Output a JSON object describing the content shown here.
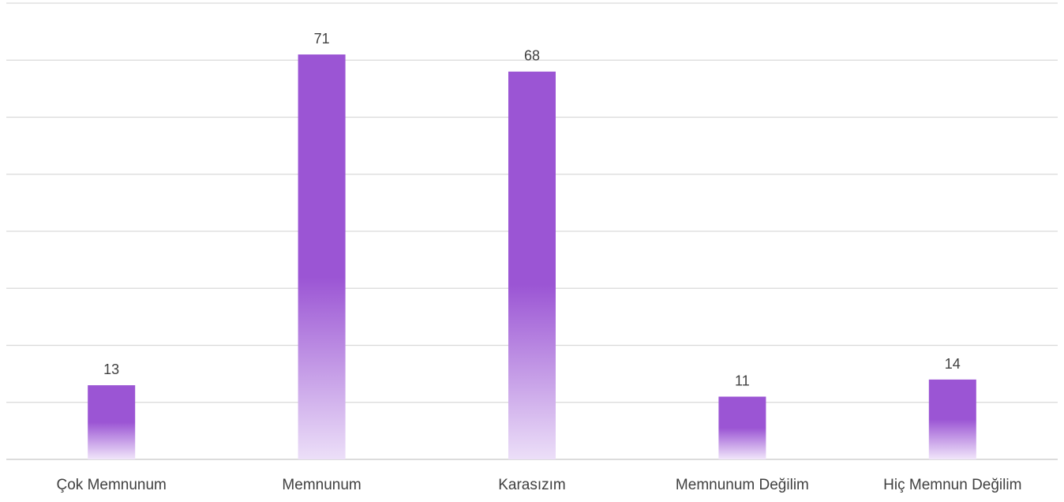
{
  "chart_data": {
    "type": "bar",
    "title": "",
    "xlabel": "",
    "ylabel": "",
    "categories": [
      "Çok Memnunum",
      "Memnunum",
      "Karasızım",
      "Memnunum Değilim",
      "Hiç Memnun Değilim"
    ],
    "series": [
      {
        "values": [
          13,
          71,
          68,
          11,
          14
        ]
      }
    ],
    "ylim": [
      0,
      80
    ],
    "grid": true,
    "gridline_step": 10,
    "legend": "none",
    "data_labels": true,
    "colors": {
      "bar": "#9b55d4",
      "bar_fade": "#ecdff8",
      "grid": "#d9d9d9",
      "text": "#404040"
    }
  }
}
